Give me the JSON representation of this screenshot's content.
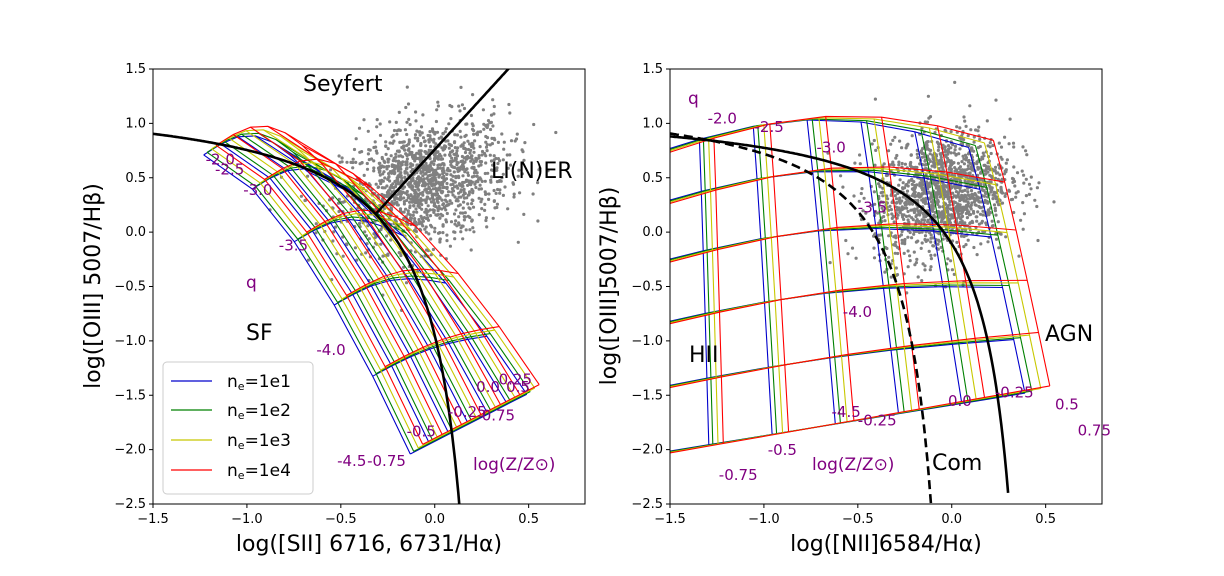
{
  "colors": {
    "ne_1e1": "#0000cc",
    "ne_1e2": "#008000",
    "ne_1e3": "#c8c800",
    "ne_1e4": "#ff0000",
    "points": "#808080",
    "demarcation": "#000000",
    "grid_labels": "#800080"
  },
  "chart_data": [
    {
      "type": "scatter",
      "title": "",
      "xlabel": "log([SII] 6716, 6731/Hα)",
      "ylabel": "log([OIII] 5007/Hβ)",
      "xlim": [
        -1.5,
        0.8
      ],
      "ylim": [
        -2.5,
        1.5
      ],
      "xticks": [
        "−1.5",
        "−1.0",
        "−0.5",
        "0.0",
        "0.5"
      ],
      "yticks": [
        "−2.5",
        "−2.0",
        "−1.5",
        "−1.0",
        "−0.5",
        "0.0",
        "0.5",
        "1.0",
        "1.5"
      ],
      "legend": {
        "placement": "lower-left",
        "entries": [
          "n_e=1e1",
          "n_e=1e2",
          "n_e=1e3",
          "n_e=1e4"
        ]
      },
      "region_labels": [
        "Seyfert",
        "LI(N)ER",
        "SF"
      ],
      "q_label": "q",
      "z_label": "log(Z/Z⊙)",
      "q_grid_values": [
        "-2.0",
        "-2.5",
        "-3.0",
        "-3.5",
        "-4.0",
        "-4.5"
      ],
      "z_grid_values": [
        "-0.75",
        "-0.5",
        "-0.25",
        "0.0",
        "0.25",
        "0.5",
        "0.75"
      ],
      "cluster": {
        "center": [
          -0.05,
          0.45
        ],
        "spread": [
          0.22,
          0.28
        ],
        "n": 1400
      },
      "demarcation_sf": "y = 0.72/(x - 0.32) + 1.30",
      "demarcation_seyfert_liner": "y = 1.89x + 0.76"
    },
    {
      "type": "scatter",
      "title": "",
      "xlabel": "log([NII]6584/Hα)",
      "ylabel": "log([OIII]5007/Hβ)",
      "xlim": [
        -1.5,
        0.8
      ],
      "ylim": [
        -2.5,
        1.5
      ],
      "xticks": [
        "−1.5",
        "−1.0",
        "−0.5",
        "0.0",
        "0.5"
      ],
      "yticks": [
        "−2.5",
        "−2.0",
        "−1.5",
        "−1.0",
        "−0.5",
        "0.0",
        "0.5",
        "1.0",
        "1.5"
      ],
      "region_labels": [
        "HII",
        "AGN",
        "Com"
      ],
      "q_label": "q",
      "z_label": "log(Z/Z⊙)",
      "q_grid_values": [
        "-2.0",
        "-2.5",
        "-3.0",
        "-3.5",
        "-4.0",
        "-4.5"
      ],
      "z_grid_values": [
        "-0.75",
        "-0.5",
        "-0.25",
        "0.0",
        "0.25",
        "0.5",
        "0.75"
      ],
      "cluster": {
        "center": [
          -0.05,
          0.35
        ],
        "spread": [
          0.18,
          0.28
        ],
        "n": 1500
      },
      "demarcation_kewley": "y = 0.61/(x - 0.47) + 1.19",
      "demarcation_kauffmann": "y = 0.61/(x - 0.05) + 1.30"
    }
  ],
  "left_panel_grid_labels": [
    {
      "text": "-2.0",
      "x": -1.22,
      "y": 0.62
    },
    {
      "text": "-2.5",
      "x": -1.17,
      "y": 0.53
    },
    {
      "text": "-3.0",
      "x": -1.02,
      "y": 0.34
    },
    {
      "text": "-3.5",
      "x": -0.83,
      "y": -0.17
    },
    {
      "text": "-4.0",
      "x": -0.63,
      "y": -1.13
    },
    {
      "text": "-4.5",
      "x": -0.52,
      "y": -2.15
    },
    {
      "text": "-0.75",
      "x": -0.36,
      "y": -2.15
    },
    {
      "text": "-0.5",
      "x": -0.15,
      "y": -1.88
    },
    {
      "text": "-0.25",
      "x": 0.07,
      "y": -1.7
    },
    {
      "text": "0.75",
      "x": 0.25,
      "y": -1.73
    },
    {
      "text": "0.0",
      "x": 0.22,
      "y": -1.47
    },
    {
      "text": "0.5",
      "x": 0.38,
      "y": -1.47
    },
    {
      "text": "0.25",
      "x": 0.34,
      "y": -1.4
    }
  ],
  "right_panel_grid_labels": [
    {
      "text": "-2.0",
      "x": -1.3,
      "y": 1.0
    },
    {
      "text": "-2.5",
      "x": -1.05,
      "y": 0.92
    },
    {
      "text": "-3.0",
      "x": -0.72,
      "y": 0.73
    },
    {
      "text": "-3.5",
      "x": -0.5,
      "y": 0.18
    },
    {
      "text": "-4.0",
      "x": -0.58,
      "y": -0.78
    },
    {
      "text": "-4.5",
      "x": -0.64,
      "y": -1.7
    },
    {
      "text": "-0.25",
      "x": -0.5,
      "y": -1.78
    },
    {
      "text": "-0.5",
      "x": -0.98,
      "y": -2.05
    },
    {
      "text": "-0.75",
      "x": -1.24,
      "y": -2.28
    },
    {
      "text": "0.0",
      "x": -0.02,
      "y": -1.6
    },
    {
      "text": "-0.25",
      "x": 0.23,
      "y": -1.52
    },
    {
      "text": "0.5",
      "x": 0.55,
      "y": -1.63
    },
    {
      "text": "0.75",
      "x": 0.67,
      "y": -1.87
    }
  ]
}
